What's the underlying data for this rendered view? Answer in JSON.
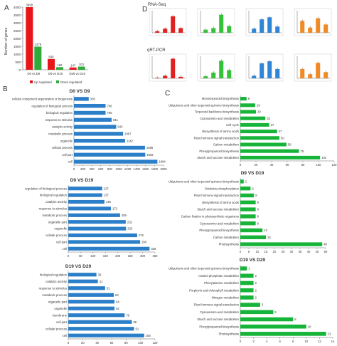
{
  "panel_letters": {
    "A": "A",
    "B": "B",
    "C": "C",
    "D": "D"
  },
  "colors": {
    "up": "#e8151b",
    "down": "#2fab3c",
    "blue": "#2b7fc9",
    "green": "#17b43a",
    "panel_red": "#e12020",
    "panel_green": "#36c13a",
    "panel_blue": "#2f86d6",
    "panel_orange": "#ef8a24"
  },
  "chart_data": [
    {
      "panel": "A",
      "type": "bar",
      "ylabel": "Number of genes",
      "ylim": [
        0,
        4000
      ],
      "yticks": [
        "0",
        "500",
        "1000",
        "1500",
        "2000",
        "2500",
        "3000",
        "3500",
        "4000"
      ],
      "categories": [
        "D0 vs D9",
        "D9 vs D19",
        "D29 vs D19"
      ],
      "series": [
        {
          "name": "Up regulated",
          "values": [
            3998,
            690,
            147
          ]
        },
        {
          "name": "Down regulated",
          "values": [
            1479,
            166,
            201
          ]
        }
      ],
      "legend": "bottom"
    },
    {
      "panel": "B",
      "type": "bar",
      "orientation": "horizontal",
      "title": "D0 VS D9",
      "xlim": [
        0,
        2000
      ],
      "xticks": [
        "0",
        "200",
        "400",
        "600",
        "800",
        "1000",
        "1200",
        "1400",
        "1600",
        "1800",
        "2000"
      ],
      "categories": [
        "cellular component organization or biogenesis",
        "regulation of biological process",
        "biological regulation",
        "response to stimulus",
        "catalytic activity",
        "metabolic process",
        "organelle",
        "cellular process",
        "cell part",
        "cell"
      ],
      "values": [
        330,
        706,
        706,
        841,
        943,
        1097,
        1142,
        1586,
        1592,
        1864
      ]
    },
    {
      "panel": "B",
      "type": "bar",
      "orientation": "horizontal",
      "title": "D9 VS D19",
      "xlim": [
        0,
        350
      ],
      "xticks": [
        "0",
        "50",
        "100",
        "150",
        "200",
        "250",
        "300",
        "350"
      ],
      "categories": [
        "regulation of biological process",
        "biological regulation",
        "catalytic activity",
        "response to stimulus",
        "metabolic process",
        "organelle part",
        "organelle",
        "cellular process",
        "cell part",
        "cell"
      ],
      "values": [
        137,
        137,
        146,
        172,
        209,
        232,
        233,
        278,
        290,
        328
      ]
    },
    {
      "panel": "B",
      "type": "bar",
      "orientation": "horizontal",
      "title": "D19 VS D29",
      "xlim": [
        0,
        120
      ],
      "xticks": [
        "0",
        "20",
        "40",
        "60",
        "80",
        "100",
        "120"
      ],
      "categories": [
        "biological regulation",
        "catalytic activity",
        "response to stimulus",
        "metabolic process",
        "organelle part",
        "organelle",
        "membrane",
        "cell part",
        "cellular process",
        "cell"
      ],
      "values": [
        39,
        41,
        51,
        63,
        64,
        64,
        78,
        88,
        91,
        105
      ]
    },
    {
      "panel": "C",
      "type": "bar",
      "orientation": "horizontal",
      "xlim": [
        0,
        120
      ],
      "xticks": [
        "0",
        "20",
        "40",
        "60",
        "80",
        "100",
        "120"
      ],
      "categories": [
        "Monoterpenoid biosynthesis",
        "Ubiquinone and other terpenoid-quinone biosynthesis",
        "Terpenoid backbone biosynthesis",
        "Cyanoamino acid metabolism",
        "Cell cycle",
        "Biosynthesis of amino acids",
        "Plant hormone signal transduction",
        "Carbon metabolism",
        "Phenylpropanoid biosynthesis",
        "Starch and sucrose metabolism"
      ],
      "values": [
        8,
        19,
        20,
        32,
        37,
        47,
        50,
        59,
        75,
        102
      ]
    },
    {
      "panel": "C",
      "type": "bar",
      "orientation": "horizontal",
      "title": "D9 VS D19",
      "xlim": [
        0,
        50
      ],
      "xticks": [
        "0",
        "5",
        "10",
        "15",
        "20",
        "25",
        "30",
        "35",
        "40",
        "45",
        "50"
      ],
      "categories": [
        "Ubiquinone and other terpenoid-quinone biosynthesis",
        "Oxidative phosphorylation",
        "Plant hormone signal transduction",
        "Biosynthesis of amino acids",
        "Starch and sucrose metabolism",
        "Carbon fixation in photosynthetic organisms",
        "Cyanoamino acid metabolism",
        "Phenylpropanoid biosynthesis",
        "Carbon metabolism",
        "Photosynthesis"
      ],
      "values": [
        2,
        6,
        8,
        9,
        9,
        9,
        9,
        13,
        15,
        48
      ]
    },
    {
      "panel": "C",
      "type": "bar",
      "orientation": "horizontal",
      "title": "D19 VS D29",
      "xlim": [
        0,
        14
      ],
      "xticks": [
        "0",
        "2",
        "4",
        "6",
        "8",
        "10",
        "12",
        "14"
      ],
      "categories": [
        "Ubiquinone and other terpenoid-quinone biosynthesis",
        "Inositol phosphate metabolism",
        "Phenylalanine metabolism",
        "Porphyrin and chlorophyll metabolism",
        "Nitrogen metabolism",
        "Plant hormone signal transduction",
        "Cyanoamino acid metabolism",
        "Starch and sucrose metabolism",
        "Phenylpropanoid biosynthesis",
        "Photosynthesis"
      ],
      "values": [
        1,
        2,
        2,
        2,
        2,
        3,
        5,
        8,
        10,
        13
      ]
    },
    {
      "panel": "D",
      "type": "bar",
      "rows": [
        "RNA-Seq",
        "qRT-PCR"
      ],
      "note": "8 mini bar charts of relative expression at four time points; values estimated",
      "panels": [
        {
          "row": "RNA-Seq",
          "color": "panel_red",
          "values": [
            0.3,
            0.8,
            3.2,
            0.9
          ]
        },
        {
          "row": "RNA-Seq",
          "color": "panel_green",
          "values": [
            0.6,
            0.9,
            3.5,
            1.3
          ]
        },
        {
          "row": "RNA-Seq",
          "color": "panel_blue",
          "values": [
            0.8,
            2.6,
            3.0,
            1.2
          ]
        },
        {
          "row": "RNA-Seq",
          "color": "panel_orange",
          "values": [
            2.3,
            1.0,
            2.8,
            1.6
          ]
        },
        {
          "row": "qRT-PCR",
          "color": "panel_red",
          "values": [
            0.1,
            0.5,
            3.8,
            0.3
          ]
        },
        {
          "row": "qRT-PCR",
          "color": "panel_green",
          "values": [
            0.4,
            1.1,
            3.4,
            1.6
          ]
        },
        {
          "row": "qRT-PCR",
          "color": "panel_blue",
          "values": [
            0.5,
            2.9,
            3.3,
            1.8
          ]
        },
        {
          "row": "qRT-PCR",
          "color": "panel_orange",
          "values": [
            1.8,
            0.8,
            3.0,
            1.2
          ]
        }
      ]
    }
  ]
}
